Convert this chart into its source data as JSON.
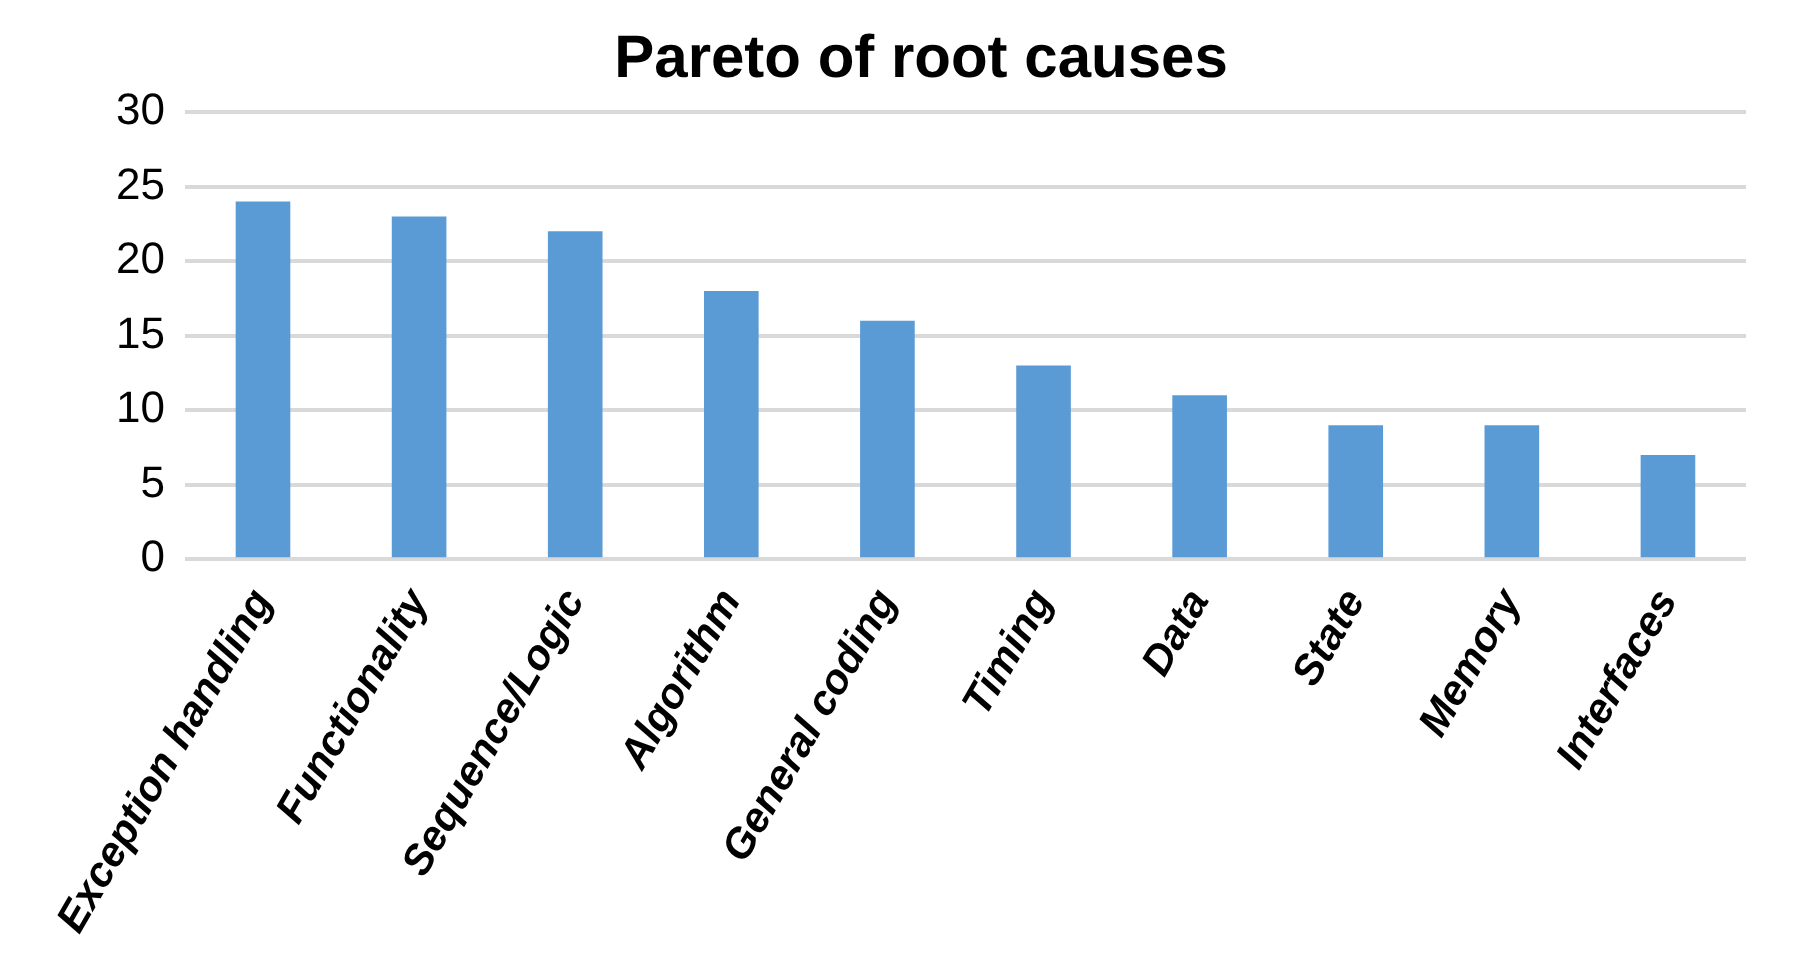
{
  "chart_data": {
    "type": "bar",
    "title": "Pareto of root causes",
    "categories": [
      "Exception handling",
      "Functionality",
      "Sequence/Logic",
      "Algorithm",
      "General coding",
      "Timing",
      "Data",
      "State",
      "Memory",
      "Interfaces"
    ],
    "values": [
      24,
      23,
      22,
      18,
      16,
      13,
      11,
      9,
      9,
      7
    ],
    "color": "#5b9bd5",
    "ylim": [
      0,
      30
    ],
    "yticks": [
      0,
      5,
      10,
      15,
      20,
      25,
      30
    ],
    "grid": "y"
  }
}
